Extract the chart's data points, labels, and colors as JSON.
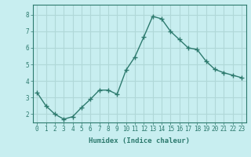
{
  "x": [
    0,
    1,
    2,
    3,
    4,
    5,
    6,
    7,
    8,
    9,
    10,
    11,
    12,
    13,
    14,
    15,
    16,
    17,
    18,
    19,
    20,
    21,
    22,
    23
  ],
  "y": [
    3.3,
    2.5,
    2.0,
    1.7,
    1.85,
    2.4,
    2.9,
    3.45,
    3.45,
    3.2,
    4.65,
    5.45,
    6.65,
    7.9,
    7.75,
    7.0,
    6.5,
    6.0,
    5.9,
    5.2,
    4.7,
    4.5,
    4.35,
    4.2
  ],
  "line_color": "#2d7a6e",
  "marker": "+",
  "marker_size": 4,
  "bg_color": "#c8eef0",
  "grid_color": "#b0d8d8",
  "xlabel": "Humidex (Indice chaleur)",
  "xlim": [
    -0.5,
    23.5
  ],
  "ylim": [
    1.5,
    8.6
  ],
  "yticks": [
    2,
    3,
    4,
    5,
    6,
    7,
    8
  ],
  "xticks": [
    0,
    1,
    2,
    3,
    4,
    5,
    6,
    7,
    8,
    9,
    10,
    11,
    12,
    13,
    14,
    15,
    16,
    17,
    18,
    19,
    20,
    21,
    22,
    23
  ],
  "xtick_labels": [
    "0",
    "1",
    "2",
    "3",
    "4",
    "5",
    "6",
    "7",
    "8",
    "9",
    "10",
    "11",
    "12",
    "13",
    "14",
    "15",
    "16",
    "17",
    "18",
    "19",
    "20",
    "21",
    "22",
    "23"
  ],
  "tick_fontsize": 5.5,
  "xlabel_fontsize": 6.5,
  "line_width": 1.0,
  "tick_color": "#2d7a6e",
  "label_color": "#2d7a6e"
}
